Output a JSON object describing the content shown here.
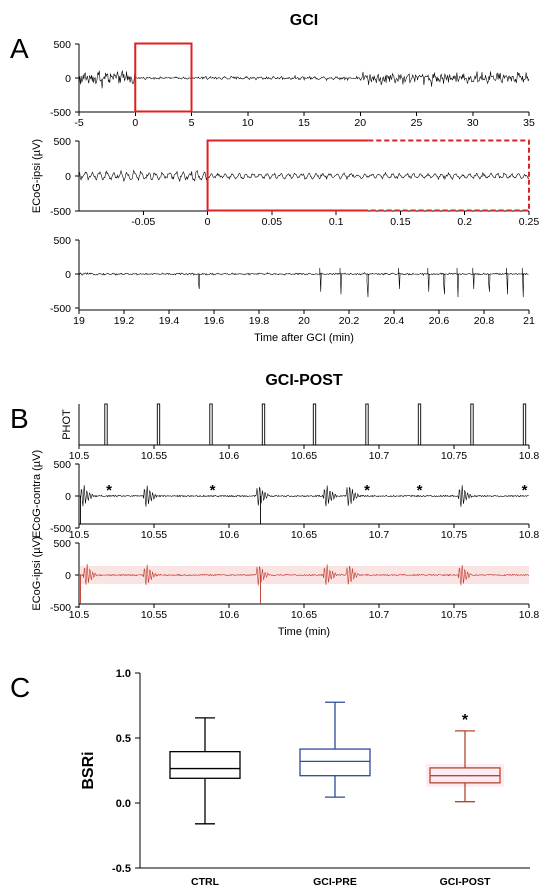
{
  "titles": {
    "a": "GCI",
    "b": "GCI-POST"
  },
  "panel_letters": {
    "a": "A",
    "b": "B",
    "c": "C"
  },
  "chart_data": [
    {
      "type": "line",
      "panel": "A1",
      "x_ticks": [
        "-5",
        "0",
        "5",
        "10",
        "15",
        "20",
        "25",
        "30",
        "35"
      ],
      "y_ticks": [
        "500",
        "0",
        "-500"
      ],
      "xlim": [
        -5,
        35
      ],
      "ylim": [
        -500,
        500
      ],
      "series": [
        {
          "kind": "ecog",
          "segments": [
            {
              "x0": -5,
              "x1": 0,
              "amp": 300
            },
            {
              "x0": 0,
              "x1": 5,
              "amp": 40
            },
            {
              "x0": 5,
              "x1": 20,
              "amp": 60
            },
            {
              "x0": 20,
              "x1": 35,
              "amp": 220
            }
          ]
        }
      ],
      "highlight": {
        "x0": 0,
        "x1": 5,
        "color": "#e02020"
      }
    },
    {
      "type": "line",
      "panel": "A2",
      "ylabel": "ECoG-ipsi (µV)",
      "x_ticks": [
        "-0.05",
        "0",
        "0.05",
        "0.1",
        "0.15",
        "0.2",
        "0.25"
      ],
      "y_ticks": [
        "500",
        "0",
        "-500"
      ],
      "xlim": [
        -0.1,
        0.25
      ],
      "ylim": [
        -500,
        500
      ],
      "series": [
        {
          "kind": "ecog",
          "segments": [
            {
              "x0": -0.1,
              "x1": 0,
              "amp": 110
            },
            {
              "x0": 0,
              "x1": 0.25,
              "amp": 60
            }
          ]
        }
      ],
      "highlight": {
        "x0": 0,
        "x1": 0.25,
        "solid_until": 0.125,
        "color": "#e02020"
      }
    },
    {
      "type": "line",
      "panel": "A3",
      "xlabel": "Time after GCI (min)",
      "x_ticks": [
        "19",
        "19.2",
        "19.4",
        "19.6",
        "19.8",
        "20",
        "20.2",
        "20.4",
        "20.6",
        "20.8",
        "21"
      ],
      "y_ticks": [
        "500",
        "0",
        "-500"
      ],
      "xlim": [
        19,
        21
      ],
      "ylim": [
        -500,
        500
      ],
      "series": [
        {
          "kind": "ecog",
          "segments": [
            {
              "x0": 19,
              "x1": 21,
              "amp": 35
            }
          ],
          "spikes": [
            19.53,
            20.07,
            20.16,
            20.28,
            20.42,
            20.55,
            20.62,
            20.68,
            20.75,
            20.82,
            20.9,
            20.97
          ]
        }
      ]
    },
    {
      "type": "line",
      "panel": "B1",
      "ylabel": "PHOT",
      "x_ticks": [
        "10.5",
        "10.55",
        "10.6",
        "10.65",
        "10.7",
        "10.75",
        "10.8"
      ],
      "xlim": [
        10.5,
        10.8
      ],
      "series": [
        {
          "kind": "pulses",
          "x": [
            10.518,
            10.553,
            10.588,
            10.623,
            10.657,
            10.692,
            10.727,
            10.762,
            10.797
          ]
        }
      ]
    },
    {
      "type": "line",
      "panel": "B2",
      "ylabel": "ECoG-contra (µV)",
      "x_ticks": [
        "10.5",
        "10.55",
        "10.6",
        "10.65",
        "10.7",
        "10.75",
        "10.8"
      ],
      "y_ticks": [
        "500",
        "0",
        "-500"
      ],
      "xlim": [
        10.5,
        10.8
      ],
      "ylim": [
        -500,
        500
      ],
      "series": [
        {
          "kind": "bursts",
          "bursts": [
            10.503,
            10.545,
            10.62,
            10.665,
            10.68,
            10.755
          ],
          "dips": [
            10.5,
            10.62
          ]
        }
      ],
      "annotations": [
        {
          "x": 10.52,
          "text": "*"
        },
        {
          "x": 10.589,
          "text": "*"
        },
        {
          "x": 10.692,
          "text": "*"
        },
        {
          "x": 10.727,
          "text": "*"
        },
        {
          "x": 10.797,
          "text": "*"
        }
      ]
    },
    {
      "type": "line",
      "panel": "B3",
      "ylabel": "ECoG-ipsi (µV)",
      "xlabel": "Time (min)",
      "x_ticks": [
        "10.5",
        "10.55",
        "10.6",
        "10.65",
        "10.7",
        "10.75",
        "10.8"
      ],
      "y_ticks": [
        "500",
        "0",
        "-500"
      ],
      "xlim": [
        10.5,
        10.8
      ],
      "ylim": [
        -500,
        500
      ],
      "series": [
        {
          "kind": "bursts",
          "bursts": [
            10.505,
            10.545,
            10.62,
            10.665,
            10.68,
            10.755
          ],
          "dips": [
            10.5,
            10.62
          ],
          "color": "#c0392b",
          "band": "#f7dada"
        }
      ]
    },
    {
      "type": "box",
      "panel": "C",
      "ylabel": "BSRi",
      "ylim": [
        -0.5,
        1.0
      ],
      "y_ticks": [
        "1.0",
        "0.5",
        "0.0",
        "-0.5"
      ],
      "categories": [
        "CTRL",
        "GCI-PRE",
        "GCI-POST"
      ],
      "boxes": [
        {
          "name": "CTRL",
          "min": -0.16,
          "q1": 0.19,
          "median": 0.265,
          "q3": 0.395,
          "max": 0.655,
          "color": "#000000"
        },
        {
          "name": "GCI-PRE",
          "min": 0.045,
          "q1": 0.21,
          "median": 0.32,
          "q3": 0.415,
          "max": 0.775,
          "color": "#2c4a9a"
        },
        {
          "name": "GCI-POST",
          "min": 0.01,
          "q1": 0.155,
          "median": 0.21,
          "q3": 0.27,
          "max": 0.555,
          "color": "#b5472c"
        }
      ],
      "annotation": {
        "category": "GCI-POST",
        "text": "*"
      }
    }
  ]
}
